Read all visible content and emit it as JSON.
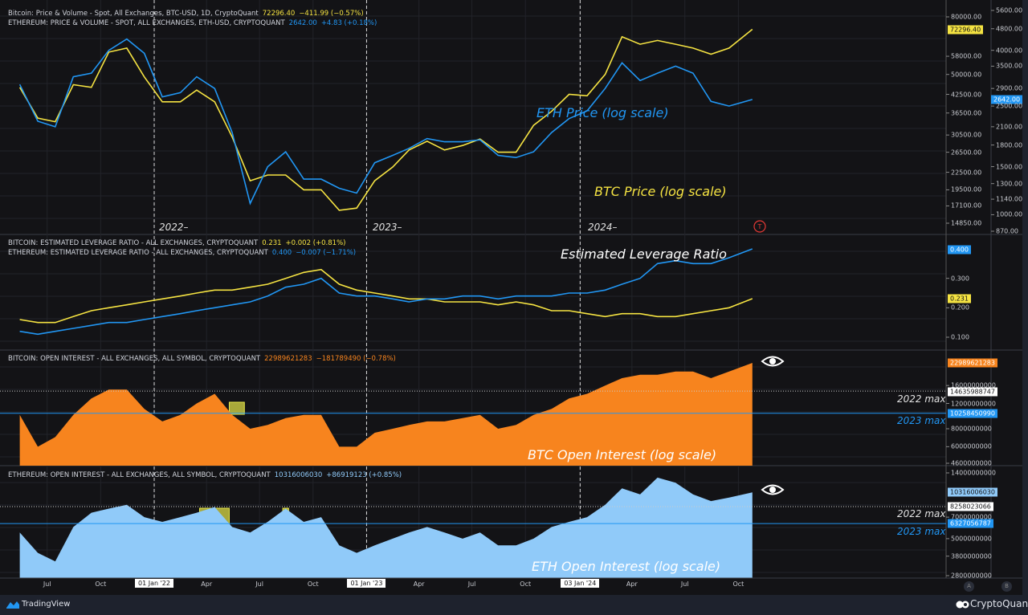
{
  "legends": {
    "btc_price": {
      "name": "Bitcoin: Price & Volume - Spot, All Exchanges, BTC-USD, 1D, CryptoQuant",
      "value": "72296.40",
      "change": "−411.99 (−0.57%)"
    },
    "eth_price": {
      "name": "ETHEREUM: PRICE & VOLUME - SPOT, ALL EXCHANGES, ETH-USD, CRYPTOQUANT",
      "value": "2642.00",
      "change": "+4.83 (+0.18%)"
    },
    "btc_lev": {
      "name": "BITCOIN: ESTIMATED LEVERAGE RATIO - ALL EXCHANGES, CRYPTOQUANT",
      "value": "0.231",
      "change": "+0.002 (+0.81%)"
    },
    "eth_lev": {
      "name": "ETHEREUM: ESTIMATED LEVERAGE RATIO - ALL EXCHANGES, CRYPTOQUANT",
      "value": "0.400",
      "change": "−0.007 (−1.71%)"
    },
    "btc_oi": {
      "name": "BITCOIN: OPEN INTEREST - ALL EXCHANGES, ALL SYMBOL, CRYPTOQUANT",
      "value": "22989621283",
      "change": "−181789490 (−0.78%)"
    },
    "eth_oi": {
      "name": "ETHEREUM: OPEN INTEREST - ALL EXCHANGES, ALL SYMBOL, CRYPTOQUANT",
      "value": "10316006030",
      "change": "+86919123 (+0.85%)"
    }
  },
  "annotations": {
    "eth_price": "ETH Price (log scale)",
    "btc_price": "BTC Price (log scale)",
    "leverage": "Estimated Leverage Ratio",
    "btc_oi": "BTC Open Interest (log scale)",
    "eth_oi": "ETH Open Interest (log scale)",
    "max_2022": "2022 max",
    "max_2023": "2023 max",
    "years": [
      "2022–",
      "2023–",
      "2024–"
    ]
  },
  "price_tags": {
    "btc_price": "72296.40",
    "eth_price": "2642.00",
    "eth_lev": "0.400",
    "btc_lev": "0.231",
    "btc_oi": "22989621283",
    "btc_oi_2022max": "14635988747",
    "btc_oi_2023max": "10258450990",
    "eth_oi": "10316006030",
    "eth_oi_2022max": "8258023066",
    "eth_oi_2023max": "6327056787"
  },
  "colors": {
    "btc": "#f5e342",
    "eth": "#2196f3",
    "btc_oi": "#f7841e",
    "eth_oi": "#90caf9",
    "background": "#131316",
    "highlight": "#e8e84a"
  },
  "footer": {
    "left_brand": "TradingView",
    "right_brand": "CryptoQuant",
    "scale_a": "A",
    "scale_b": "B"
  },
  "icons": {
    "eye": "eye-icon",
    "alert": "red-circle-t-icon",
    "tradingview": "tradingview-logo-icon",
    "cryptoquant": "cryptoquant-logo-icon"
  },
  "chart_data": {
    "type": "line",
    "x_ticks": [
      {
        "date": "2021-07-01",
        "label": "Jul"
      },
      {
        "date": "2021-10-01",
        "label": "Oct"
      },
      {
        "date": "2022-01-01",
        "label": "01 Jan '22",
        "highlight": true
      },
      {
        "date": "2022-04-01",
        "label": "Apr"
      },
      {
        "date": "2022-07-01",
        "label": "Jul"
      },
      {
        "date": "2022-10-01",
        "label": "Oct"
      },
      {
        "date": "2023-01-01",
        "label": "01 Jan '23",
        "highlight": true
      },
      {
        "date": "2023-04-01",
        "label": "Apr"
      },
      {
        "date": "2023-07-01",
        "label": "Jul"
      },
      {
        "date": "2023-10-01",
        "label": "Oct"
      },
      {
        "date": "2024-01-03",
        "label": "03 Jan '24",
        "highlight": true
      },
      {
        "date": "2024-04-01",
        "label": "Apr"
      },
      {
        "date": "2024-07-01",
        "label": "Jul"
      },
      {
        "date": "2024-10-01",
        "label": "Oct"
      }
    ],
    "dates": [
      "2021-05-15",
      "2021-06-15",
      "2021-07-15",
      "2021-08-15",
      "2021-09-15",
      "2021-10-15",
      "2021-11-15",
      "2021-12-15",
      "2022-01-15",
      "2022-02-15",
      "2022-03-15",
      "2022-04-15",
      "2022-05-15",
      "2022-06-15",
      "2022-07-15",
      "2022-08-15",
      "2022-09-15",
      "2022-10-15",
      "2022-11-15",
      "2022-12-15",
      "2023-01-15",
      "2023-02-15",
      "2023-03-15",
      "2023-04-15",
      "2023-05-15",
      "2023-06-15",
      "2023-07-15",
      "2023-08-15",
      "2023-09-15",
      "2023-10-15",
      "2023-11-15",
      "2023-12-15",
      "2024-01-15",
      "2024-02-15",
      "2024-03-15",
      "2024-04-15",
      "2024-05-15",
      "2024-06-15",
      "2024-07-15",
      "2024-08-15",
      "2024-09-15",
      "2024-10-25"
    ],
    "panes": [
      {
        "id": "price",
        "scales": [
          {
            "series": "btc_price",
            "log": true,
            "range": [
              14850,
              80000
            ],
            "ticks": [
              "80000.00",
              "58000.00",
              "50000.00",
              "42500.00",
              "36500.00",
              "30500.00",
              "26500.00",
              "22500.00",
              "19500.00",
              "17100.00",
              "14850.00"
            ]
          },
          {
            "series": "eth_price",
            "log": true,
            "range": [
              870,
              5600
            ],
            "ticks": [
              "5600.00",
              "4800.00",
              "4000.00",
              "3500.00",
              "2900.00",
              "2500.00",
              "2100.00",
              "1800.00",
              "1500.00",
              "1300.00",
              "1140.00",
              "1000.00",
              "870.00"
            ]
          }
        ],
        "series": [
          {
            "key": "btc_price",
            "name": "Bitcoin",
            "values": [
              45000,
              35000,
              34000,
              46000,
              45000,
              60000,
              62000,
              49000,
              40000,
              40000,
              44000,
              40000,
              30000,
              21000,
              22000,
              22000,
              19500,
              19500,
              16500,
              16800,
              21000,
              23500,
              27000,
              29000,
              27000,
              28000,
              29500,
              26500,
              26500,
              33000,
              37000,
              42500,
              42000,
              50000,
              68000,
              64000,
              66000,
              64000,
              62000,
              59000,
              62000,
              72296.4
            ]
          },
          {
            "key": "eth_price",
            "name": "Ethereum",
            "values": [
              3000,
              2200,
              2100,
              3200,
              3300,
              4000,
              4400,
              3900,
              2700,
              2800,
              3200,
              2900,
              2000,
              1100,
              1500,
              1700,
              1350,
              1350,
              1250,
              1200,
              1550,
              1650,
              1750,
              1900,
              1850,
              1850,
              1880,
              1650,
              1620,
              1700,
              2000,
              2250,
              2400,
              2900,
              3600,
              3100,
              3300,
              3500,
              3300,
              2600,
              2500,
              2642
            ]
          }
        ]
      },
      {
        "id": "leverage",
        "scales": [
          {
            "log": false,
            "range": [
              0.1,
              0.4
            ],
            "ticks": [
              "0.300",
              "0.200",
              "0.100"
            ]
          }
        ],
        "series": [
          {
            "key": "btc_lev",
            "name": "Bitcoin",
            "values": [
              0.16,
              0.15,
              0.15,
              0.17,
              0.19,
              0.2,
              0.21,
              0.22,
              0.23,
              0.24,
              0.25,
              0.26,
              0.26,
              0.27,
              0.28,
              0.3,
              0.32,
              0.33,
              0.28,
              0.26,
              0.25,
              0.24,
              0.23,
              0.23,
              0.22,
              0.22,
              0.22,
              0.21,
              0.22,
              0.21,
              0.19,
              0.19,
              0.18,
              0.17,
              0.18,
              0.18,
              0.17,
              0.17,
              0.18,
              0.19,
              0.2,
              0.231
            ]
          },
          {
            "key": "eth_lev",
            "name": "Ethereum",
            "values": [
              0.12,
              0.11,
              0.12,
              0.13,
              0.14,
              0.15,
              0.15,
              0.16,
              0.17,
              0.18,
              0.19,
              0.2,
              0.21,
              0.22,
              0.24,
              0.27,
              0.28,
              0.3,
              0.25,
              0.24,
              0.24,
              0.23,
              0.22,
              0.23,
              0.23,
              0.24,
              0.24,
              0.23,
              0.24,
              0.24,
              0.24,
              0.25,
              0.25,
              0.26,
              0.28,
              0.3,
              0.35,
              0.36,
              0.35,
              0.35,
              0.37,
              0.4
            ]
          }
        ]
      },
      {
        "id": "btc_oi",
        "type": "area",
        "scales": [
          {
            "log": true,
            "range": [
              4600000000,
              22989621283
            ],
            "ticks": [
              "16000000000",
              "12000000000",
              "8000000000",
              "6000000000",
              "4600000000"
            ]
          }
        ],
        "series": [
          {
            "key": "btc_oi",
            "name": "Bitcoin",
            "values": [
              10000000000,
              6000000000,
              7000000000,
              10000000000,
              13000000000,
              15000000000,
              15000000000,
              11000000000,
              9000000000,
              10000000000,
              12000000000,
              14000000000,
              10000000000,
              8000000000,
              8500000000,
              9500000000,
              10000000000,
              10000000000,
              6000000000,
              6000000000,
              7500000000,
              8000000000,
              8500000000,
              9000000000,
              9000000000,
              9500000000,
              10000000000,
              8000000000,
              8500000000,
              10000000000,
              11000000000,
              13000000000,
              14000000000,
              16000000000,
              18000000000,
              19000000000,
              19000000000,
              20000000000,
              20000000000,
              18000000000,
              20000000000,
              22989621283
            ]
          }
        ],
        "levels": [
          {
            "label": "2022 max",
            "value": 14635988747,
            "style": "dotted"
          },
          {
            "label": "2023 max",
            "value": 10258450990,
            "style": "solid"
          }
        ],
        "highlights": [
          {
            "from": "2022-05-10",
            "to": "2022-06-05"
          }
        ]
      },
      {
        "id": "eth_oi",
        "type": "area",
        "scales": [
          {
            "log": true,
            "range": [
              2800000000,
              14000000000
            ],
            "ticks": [
              "14000000000",
              "7000000000",
              "5000000000",
              "3800000000",
              "2800000000"
            ]
          }
        ],
        "series": [
          {
            "key": "eth_oi",
            "name": "Ethereum",
            "values": [
              5500000000,
              4000000000,
              3500000000,
              6000000000,
              7500000000,
              8000000000,
              8500000000,
              7000000000,
              6500000000,
              7000000000,
              7500000000,
              8200000000,
              6000000000,
              5500000000,
              6500000000,
              8000000000,
              6500000000,
              7000000000,
              4500000000,
              4000000000,
              4500000000,
              5000000000,
              5500000000,
              6000000000,
              5500000000,
              5000000000,
              5500000000,
              4500000000,
              4500000000,
              5000000000,
              6000000000,
              6500000000,
              7000000000,
              8500000000,
              11000000000,
              10000000000,
              13000000000,
              12000000000,
              10000000000,
              9000000000,
              9500000000,
              10316006030
            ]
          }
        ],
        "levels": [
          {
            "label": "2022 max",
            "value": 8258023066,
            "style": "dotted"
          },
          {
            "label": "2023 max",
            "value": 6327056787,
            "style": "solid"
          }
        ],
        "highlights": [
          {
            "from": "2022-03-20",
            "to": "2022-05-10"
          },
          {
            "from": "2022-08-10",
            "to": "2022-08-20"
          }
        ]
      }
    ]
  }
}
